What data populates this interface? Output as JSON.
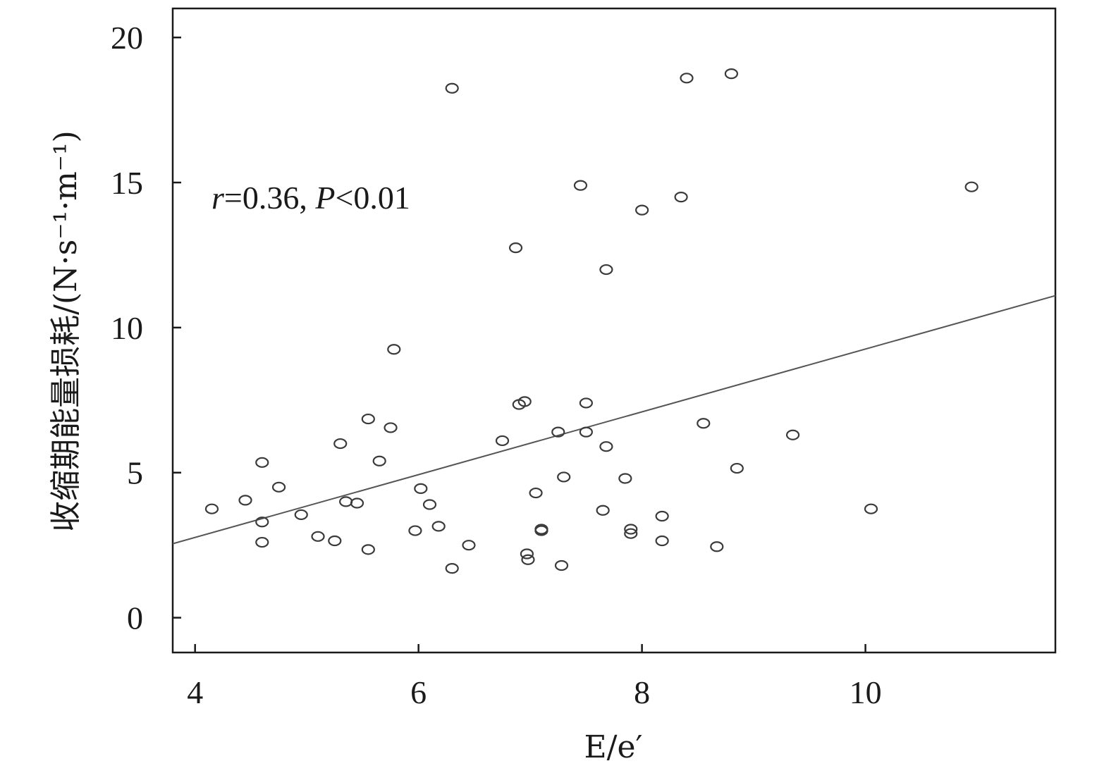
{
  "chart_data": {
    "type": "scatter",
    "xlabel": "E/e′",
    "ylabel": "收缩期能量损耗/(N·s⁻¹·m⁻¹)",
    "xlim": [
      3.8,
      11.7
    ],
    "ylim": [
      -1.2,
      21.0
    ],
    "xticks": [
      4,
      6,
      8,
      10
    ],
    "yticks": [
      0,
      5,
      10,
      15,
      20
    ],
    "grid": false,
    "annotation": {
      "r_label": "r",
      "r_text": "=0.36, ",
      "p_label": "P",
      "p_text": "<0.01"
    },
    "trendline": {
      "x": [
        3.8,
        11.7
      ],
      "y": [
        2.55,
        11.1
      ]
    },
    "points": [
      {
        "x": 4.15,
        "y": 3.75
      },
      {
        "x": 4.45,
        "y": 4.05
      },
      {
        "x": 4.6,
        "y": 5.35
      },
      {
        "x": 4.6,
        "y": 3.3
      },
      {
        "x": 4.6,
        "y": 2.6
      },
      {
        "x": 4.75,
        "y": 4.5
      },
      {
        "x": 4.95,
        "y": 3.55
      },
      {
        "x": 5.1,
        "y": 2.8
      },
      {
        "x": 5.25,
        "y": 2.65
      },
      {
        "x": 5.3,
        "y": 6.0
      },
      {
        "x": 5.35,
        "y": 4.0
      },
      {
        "x": 5.45,
        "y": 3.95
      },
      {
        "x": 5.55,
        "y": 6.85
      },
      {
        "x": 5.55,
        "y": 2.35
      },
      {
        "x": 5.65,
        "y": 5.4
      },
      {
        "x": 5.75,
        "y": 6.55
      },
      {
        "x": 5.78,
        "y": 9.25
      },
      {
        "x": 5.97,
        "y": 3.0
      },
      {
        "x": 6.02,
        "y": 4.45
      },
      {
        "x": 6.1,
        "y": 3.9
      },
      {
        "x": 6.18,
        "y": 3.15
      },
      {
        "x": 6.3,
        "y": 18.25
      },
      {
        "x": 6.3,
        "y": 1.7
      },
      {
        "x": 6.45,
        "y": 2.5
      },
      {
        "x": 6.75,
        "y": 6.1
      },
      {
        "x": 6.87,
        "y": 12.75
      },
      {
        "x": 6.9,
        "y": 7.35
      },
      {
        "x": 6.95,
        "y": 7.45
      },
      {
        "x": 6.97,
        "y": 2.2
      },
      {
        "x": 6.98,
        "y": 2.0
      },
      {
        "x": 7.05,
        "y": 4.3
      },
      {
        "x": 7.1,
        "y": 3.05
      },
      {
        "x": 7.1,
        "y": 3.0
      },
      {
        "x": 7.25,
        "y": 6.4
      },
      {
        "x": 7.28,
        "y": 1.8
      },
      {
        "x": 7.3,
        "y": 4.85
      },
      {
        "x": 7.45,
        "y": 14.9
      },
      {
        "x": 7.5,
        "y": 7.4
      },
      {
        "x": 7.5,
        "y": 6.4
      },
      {
        "x": 7.65,
        "y": 3.7
      },
      {
        "x": 7.68,
        "y": 12.0
      },
      {
        "x": 7.68,
        "y": 5.9
      },
      {
        "x": 7.85,
        "y": 4.8
      },
      {
        "x": 7.9,
        "y": 3.05
      },
      {
        "x": 7.9,
        "y": 2.9
      },
      {
        "x": 8.0,
        "y": 14.05
      },
      {
        "x": 8.18,
        "y": 3.5
      },
      {
        "x": 8.18,
        "y": 2.65
      },
      {
        "x": 8.35,
        "y": 14.5
      },
      {
        "x": 8.4,
        "y": 18.6
      },
      {
        "x": 8.55,
        "y": 6.7
      },
      {
        "x": 8.67,
        "y": 2.45
      },
      {
        "x": 8.8,
        "y": 18.75
      },
      {
        "x": 8.85,
        "y": 5.15
      },
      {
        "x": 9.35,
        "y": 6.3
      },
      {
        "x": 10.05,
        "y": 3.75
      },
      {
        "x": 10.95,
        "y": 14.85
      }
    ]
  }
}
